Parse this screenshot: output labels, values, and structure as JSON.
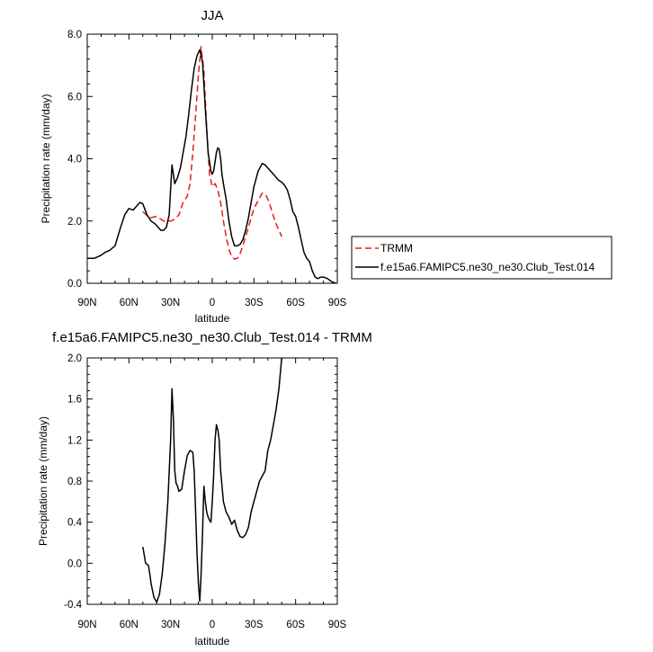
{
  "chart_data": [
    {
      "type": "line",
      "title": "JJA",
      "xlabel": "latitude",
      "ylabel": "Precipitation rate (mm/day)",
      "xlim": [
        90,
        -90
      ],
      "ylim": [
        0,
        8
      ],
      "x_ticks": [
        90,
        60,
        30,
        0,
        -30,
        -60,
        -90
      ],
      "x_tick_labels": [
        "90N",
        "60N",
        "30N",
        "0",
        "30S",
        "60S",
        "90S"
      ],
      "y_ticks": [
        0,
        2,
        4,
        6,
        8
      ],
      "y_tick_labels": [
        "0.0",
        "2.0",
        "4.0",
        "6.0",
        "8.0"
      ],
      "grid": false,
      "legend": {
        "placement": "right"
      },
      "series": [
        {
          "name": "TRMM",
          "color": "#e8191c",
          "dash": "dashed",
          "x": [
            50,
            45,
            40,
            35,
            30,
            27,
            24,
            21,
            18,
            16,
            14,
            12,
            10,
            8,
            6,
            4,
            2,
            0,
            -2,
            -4,
            -6,
            -8,
            -10,
            -12,
            -14,
            -16,
            -18,
            -20,
            -22,
            -24,
            -26,
            -28,
            -30,
            -33,
            -36,
            -39,
            -41,
            -43,
            -46,
            -48,
            -50
          ],
          "y": [
            2.3,
            2.1,
            2.15,
            2.0,
            2.0,
            2.05,
            2.2,
            2.6,
            2.8,
            3.2,
            4.2,
            5.4,
            6.7,
            7.6,
            6.8,
            5.0,
            3.5,
            3.1,
            3.2,
            3.0,
            2.6,
            2.0,
            1.5,
            1.1,
            0.85,
            0.78,
            0.8,
            0.95,
            1.2,
            1.5,
            1.8,
            2.1,
            2.4,
            2.65,
            2.9,
            2.8,
            2.6,
            2.3,
            1.9,
            1.7,
            1.5
          ]
        },
        {
          "name": "f.e15a6.FAMIPC5.ne30_ne30.Club_Test.014",
          "color": "#000000",
          "dash": "solid",
          "x": [
            90,
            85,
            80,
            77,
            74,
            70,
            66,
            63,
            60,
            57,
            54,
            52,
            50,
            47,
            44,
            41,
            39,
            37,
            35,
            33,
            31,
            29,
            27,
            25,
            23,
            21,
            19,
            17,
            15,
            13,
            11,
            9,
            7,
            5,
            3,
            1,
            0,
            -1,
            -2,
            -3,
            -4,
            -5,
            -6,
            -7,
            -8,
            -10,
            -12,
            -14,
            -16,
            -18,
            -20,
            -22,
            -24,
            -26,
            -28,
            -30,
            -33,
            -36,
            -38,
            -40,
            -42,
            -44,
            -46,
            -48,
            -50,
            -52,
            -54,
            -56,
            -58,
            -60,
            -62,
            -64,
            -66,
            -68,
            -70,
            -72,
            -74,
            -76,
            -78,
            -80,
            -83,
            -86,
            -89
          ],
          "y": [
            0.8,
            0.8,
            0.9,
            1.0,
            1.05,
            1.2,
            1.8,
            2.2,
            2.4,
            2.35,
            2.5,
            2.6,
            2.55,
            2.2,
            2.0,
            1.9,
            1.8,
            1.7,
            1.7,
            1.8,
            2.2,
            3.8,
            3.2,
            3.4,
            3.7,
            4.2,
            4.7,
            5.4,
            6.2,
            6.9,
            7.3,
            7.5,
            7.1,
            5.6,
            4.2,
            3.6,
            3.5,
            3.6,
            3.9,
            4.2,
            4.35,
            4.3,
            4.0,
            3.5,
            3.2,
            2.7,
            2.0,
            1.5,
            1.2,
            1.2,
            1.25,
            1.4,
            1.7,
            2.1,
            2.6,
            3.1,
            3.6,
            3.85,
            3.8,
            3.7,
            3.6,
            3.5,
            3.4,
            3.3,
            3.25,
            3.15,
            3.0,
            2.7,
            2.3,
            2.15,
            1.8,
            1.4,
            1.0,
            0.8,
            0.7,
            0.4,
            0.2,
            0.15,
            0.2,
            0.2,
            0.15,
            0.05,
            0.0
          ]
        }
      ]
    },
    {
      "type": "line",
      "title": "f.e15a6.FAMIPC5.ne30_ne30.Club_Test.014 - TRMM",
      "xlabel": "latitude",
      "ylabel": "Precipitation rate (mm/day)",
      "xlim": [
        90,
        -90
      ],
      "ylim": [
        -0.4,
        2.0
      ],
      "x_ticks": [
        90,
        60,
        30,
        0,
        -30,
        -60,
        -90
      ],
      "x_tick_labels": [
        "90N",
        "60N",
        "30N",
        "0",
        "30S",
        "60S",
        "90S"
      ],
      "y_ticks": [
        -0.4,
        0.0,
        0.4,
        0.8,
        1.2,
        1.6,
        2.0
      ],
      "y_tick_labels": [
        "-0.4",
        "0.0",
        "0.4",
        "0.8",
        "1.2",
        "1.6",
        "2.0"
      ],
      "grid": false,
      "series": [
        {
          "color": "#000000",
          "x": [
            50,
            48,
            46,
            45,
            44,
            42,
            40,
            38,
            36,
            34,
            32,
            30,
            29,
            28,
            27,
            26,
            25,
            24,
            22,
            20,
            18,
            16,
            14,
            13,
            12,
            11,
            10,
            9,
            8,
            7,
            6,
            5,
            4,
            3,
            2,
            1,
            0,
            -1,
            -2,
            -3,
            -4,
            -5,
            -6,
            -8,
            -10,
            -12,
            -14,
            -16,
            -18,
            -20,
            -22,
            -24,
            -26,
            -28,
            -30,
            -32,
            -34,
            -36,
            -38,
            -40,
            -42,
            -44,
            -46,
            -48,
            -50
          ],
          "y": [
            0.16,
            0.0,
            -0.02,
            -0.1,
            -0.2,
            -0.33,
            -0.38,
            -0.3,
            -0.1,
            0.2,
            0.6,
            1.2,
            1.7,
            1.4,
            0.9,
            0.78,
            0.75,
            0.7,
            0.72,
            0.9,
            1.05,
            1.1,
            1.08,
            0.9,
            0.5,
            0.1,
            -0.2,
            -0.37,
            -0.1,
            0.3,
            0.75,
            0.6,
            0.5,
            0.45,
            0.42,
            0.4,
            0.6,
            0.85,
            1.2,
            1.35,
            1.3,
            1.2,
            0.9,
            0.6,
            0.5,
            0.45,
            0.38,
            0.42,
            0.32,
            0.26,
            0.25,
            0.28,
            0.35,
            0.5,
            0.6,
            0.7,
            0.8,
            0.85,
            0.9,
            1.1,
            1.2,
            1.35,
            1.5,
            1.7,
            2.0
          ]
        }
      ]
    }
  ]
}
